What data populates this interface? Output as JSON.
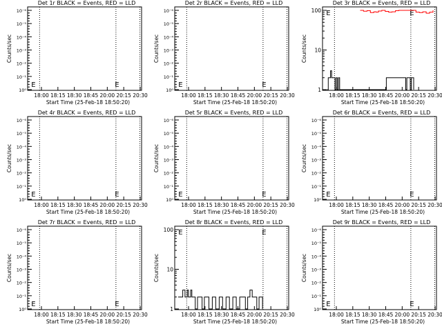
{
  "chart_data": [
    {
      "type": "line",
      "title": "Det 1r BLACK = Events, RED = LLD",
      "xlabel": "Start Time (25-Feb-18 18:50:20)",
      "ylabel": "Counts/sec",
      "xticks": [
        "18:00",
        "18:15",
        "18:30",
        "18:45",
        "20:00",
        "20:15",
        "20:30"
      ],
      "yticks": [
        "10⁰",
        "10⁻¹",
        "10⁻²",
        "10⁻³",
        "10⁻⁴",
        "10⁻⁵",
        "10⁻⁶"
      ],
      "markers": [
        "E",
        "E"
      ],
      "series": []
    },
    {
      "type": "line",
      "title": "Det 2r BLACK = Events, RED = LLD",
      "xlabel": "Start Time (25-Feb-18 18:50:20)",
      "ylabel": "Counts/sec",
      "xticks": [
        "18:00",
        "18:15",
        "18:30",
        "18:45",
        "20:00",
        "20:15",
        "20:30"
      ],
      "yticks": [
        "10⁰",
        "10⁻¹",
        "10⁻²",
        "10⁻³",
        "10⁻⁴",
        "10⁻⁵",
        "10⁻⁶"
      ],
      "markers": [
        "E",
        "E"
      ],
      "series": []
    },
    {
      "type": "line",
      "title": "Det 3r BLACK = Events, RED = LLD",
      "xlabel": "Start Time (25-Feb-18 18:50:20)",
      "ylabel": "Counts/sec",
      "xticks": [
        "18:00",
        "18:15",
        "18:30",
        "18:45",
        "20:00",
        "20:15",
        "20:30"
      ],
      "yticks": [
        "1",
        "10",
        "100"
      ],
      "markers": [
        "E",
        "E"
      ],
      "series": [
        {
          "color": "#000000",
          "x": [
            0.04,
            0.05,
            0.06,
            0.07,
            0.08,
            0.09,
            0.1,
            0.11,
            0.12,
            0.13,
            0.14,
            0.15,
            0.55,
            0.56,
            0.73,
            0.74,
            0.76,
            0.77,
            0.78,
            0.79,
            0.8
          ],
          "y": [
            1,
            2,
            2,
            3,
            2,
            2,
            2,
            1,
            2,
            1,
            2,
            1,
            1,
            2,
            1,
            2,
            2,
            1,
            2,
            2,
            1
          ]
        },
        {
          "color": "#ff0000",
          "x": [
            0.33,
            0.36,
            0.39,
            0.42,
            0.45,
            0.47,
            0.49,
            0.52,
            0.55,
            0.58,
            0.61,
            0.64,
            0.67,
            0.8,
            0.82,
            0.85,
            0.88,
            0.91,
            0.94,
            0.97
          ],
          "y": [
            100,
            95,
            98,
            88,
            92,
            90,
            96,
            100,
            94,
            90,
            92,
            98,
            100,
            100,
            90,
            88,
            92,
            85,
            90,
            100
          ]
        }
      ]
    },
    {
      "type": "line",
      "title": "Det 4r BLACK = Events, RED = LLD",
      "xlabel": "Start Time (25-Feb-18 18:50:20)",
      "ylabel": "Counts/sec",
      "xticks": [
        "18:00",
        "18:15",
        "18:30",
        "18:45",
        "20:00",
        "20:15",
        "20:30"
      ],
      "yticks": [
        "10⁰",
        "10⁻¹",
        "10⁻²",
        "10⁻³",
        "10⁻⁴",
        "10⁻⁵",
        "10⁻⁶"
      ],
      "markers": [
        "E",
        "E"
      ],
      "series": []
    },
    {
      "type": "line",
      "title": "Det 5r BLACK = Events, RED = LLD",
      "xlabel": "Start Time (25-Feb-18 18:50:20)",
      "ylabel": "Counts/sec",
      "xticks": [
        "18:00",
        "18:15",
        "18:30",
        "18:45",
        "20:00",
        "20:15",
        "20:30"
      ],
      "yticks": [
        "10⁰",
        "10⁻¹",
        "10⁻²",
        "10⁻³",
        "10⁻⁴",
        "10⁻⁵",
        "10⁻⁶"
      ],
      "markers": [
        "E",
        "E"
      ],
      "series": []
    },
    {
      "type": "line",
      "title": "Det 6r BLACK = Events, RED = LLD",
      "xlabel": "Start Time (25-Feb-18 18:50:20)",
      "ylabel": "Counts/sec",
      "xticks": [
        "18:00",
        "18:15",
        "18:30",
        "18:45",
        "20:00",
        "20:15",
        "20:30"
      ],
      "yticks": [
        "10⁰",
        "10⁻¹",
        "10⁻²",
        "10⁻³",
        "10⁻⁴",
        "10⁻⁵",
        "10⁻⁶"
      ],
      "markers": [
        "E",
        "E"
      ],
      "series": []
    },
    {
      "type": "line",
      "title": "Det 7r BLACK = Events, RED = LLD",
      "xlabel": "Start Time (25-Feb-18 18:50:20)",
      "ylabel": "Counts/sec",
      "xticks": [
        "18:00",
        "18:15",
        "18:30",
        "18:45",
        "20:00",
        "20:15",
        "20:30"
      ],
      "yticks": [
        "10⁰",
        "10⁻¹",
        "10⁻²",
        "10⁻³",
        "10⁻⁴",
        "10⁻⁵",
        "10⁻⁶"
      ],
      "markers": [
        "E",
        "E"
      ],
      "series": []
    },
    {
      "type": "line",
      "title": "Det 8r BLACK = Events, RED = LLD",
      "xlabel": "Start Time (25-Feb-18 18:50:20)",
      "ylabel": "Counts/sec",
      "xticks": [
        "18:00",
        "18:15",
        "18:30",
        "18:45",
        "20:00",
        "20:15",
        "20:30"
      ],
      "yticks": [
        "1",
        "10",
        "100"
      ],
      "markers": [
        "E",
        "E"
      ],
      "series": [
        {
          "color": "#000000",
          "x": [
            0.03,
            0.06,
            0.07,
            0.09,
            0.11,
            0.12,
            0.14,
            0.15,
            0.16,
            0.18,
            0.2,
            0.22,
            0.24,
            0.26,
            0.28,
            0.3,
            0.33,
            0.36,
            0.39,
            0.42,
            0.45,
            0.48,
            0.51,
            0.54,
            0.57,
            0.6,
            0.62,
            0.64,
            0.66,
            0.68,
            0.7,
            0.72,
            0.74,
            0.77
          ],
          "y": [
            2,
            2,
            3,
            2,
            3,
            2,
            3,
            2,
            2,
            1,
            2,
            2,
            1,
            2,
            2,
            1,
            2,
            1,
            2,
            1,
            2,
            1,
            2,
            1,
            2,
            2,
            1,
            2,
            3,
            2,
            2,
            1,
            2,
            1
          ]
        }
      ]
    },
    {
      "type": "line",
      "title": "Det 9r BLACK = Events, RED = LLD",
      "xlabel": "Start Time (25-Feb-18 18:50:20)",
      "ylabel": "Counts/sec",
      "xticks": [
        "18:00",
        "18:15",
        "18:30",
        "18:45",
        "20:00",
        "20:15",
        "20:30"
      ],
      "yticks": [
        "10⁰",
        "10⁻¹",
        "10⁻²",
        "10⁻³",
        "10⁻⁴",
        "10⁻⁵",
        "10⁻⁶"
      ],
      "markers": [
        "E",
        "E"
      ],
      "series": []
    }
  ]
}
